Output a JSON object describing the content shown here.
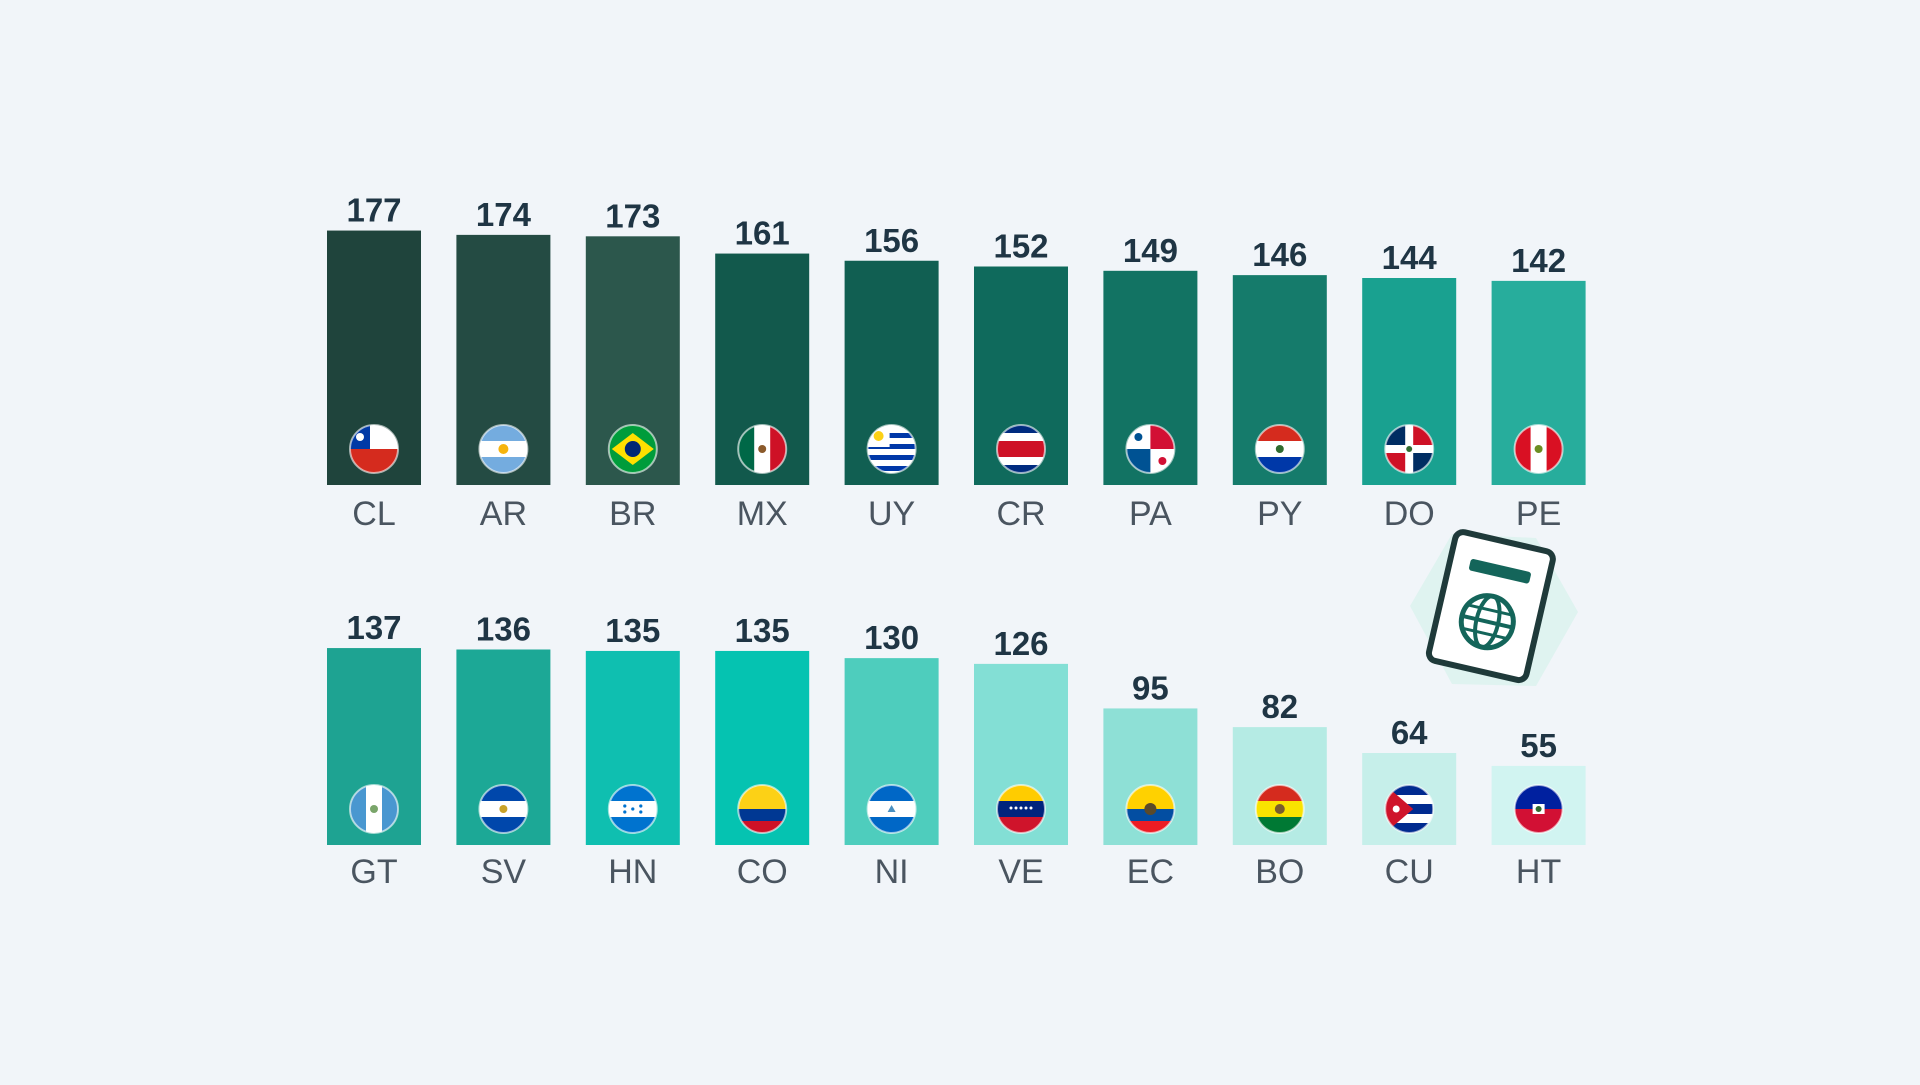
{
  "chart_data": [
    {
      "type": "bar",
      "categories": [
        "CL",
        "AR",
        "BR",
        "MX",
        "UY",
        "CR",
        "PA",
        "PY",
        "DO",
        "PE"
      ],
      "values": [
        177,
        174,
        173,
        161,
        156,
        152,
        149,
        146,
        144,
        142
      ],
      "colors": [
        "#1f443c",
        "#244b43",
        "#2c574c",
        "#12594c",
        "#115f52",
        "#0f6a5c",
        "#127363",
        "#157b6b",
        "#19a190",
        "#27ad9c"
      ],
      "flags": [
        "chile",
        "argentina",
        "brazil",
        "mexico",
        "uruguay",
        "costa-rica",
        "panama",
        "paraguay",
        "dominican-republic",
        "peru"
      ],
      "title": "",
      "xlabel": "",
      "ylabel": "",
      "grid": false
    },
    {
      "type": "bar",
      "categories": [
        "GT",
        "SV",
        "HN",
        "CO",
        "NI",
        "VE",
        "EC",
        "BO",
        "CU",
        "HT"
      ],
      "values": [
        137,
        136,
        135,
        135,
        130,
        126,
        95,
        82,
        64,
        55
      ],
      "colors": [
        "#1ea392",
        "#1ca896",
        "#0fbfb0",
        "#05c3b1",
        "#4ecdbd",
        "#83dfd5",
        "#8ee0d6",
        "#b5ebe4",
        "#c6efea",
        "#d1f4f1"
      ],
      "flags": [
        "guatemala",
        "el-salvador",
        "honduras",
        "colombia",
        "nicaragua",
        "venezuela",
        "ecuador",
        "bolivia",
        "cuba",
        "haiti"
      ],
      "title": "",
      "xlabel": "",
      "ylabel": "",
      "grid": false
    }
  ],
  "decoration": {
    "icon": "passport-icon"
  }
}
